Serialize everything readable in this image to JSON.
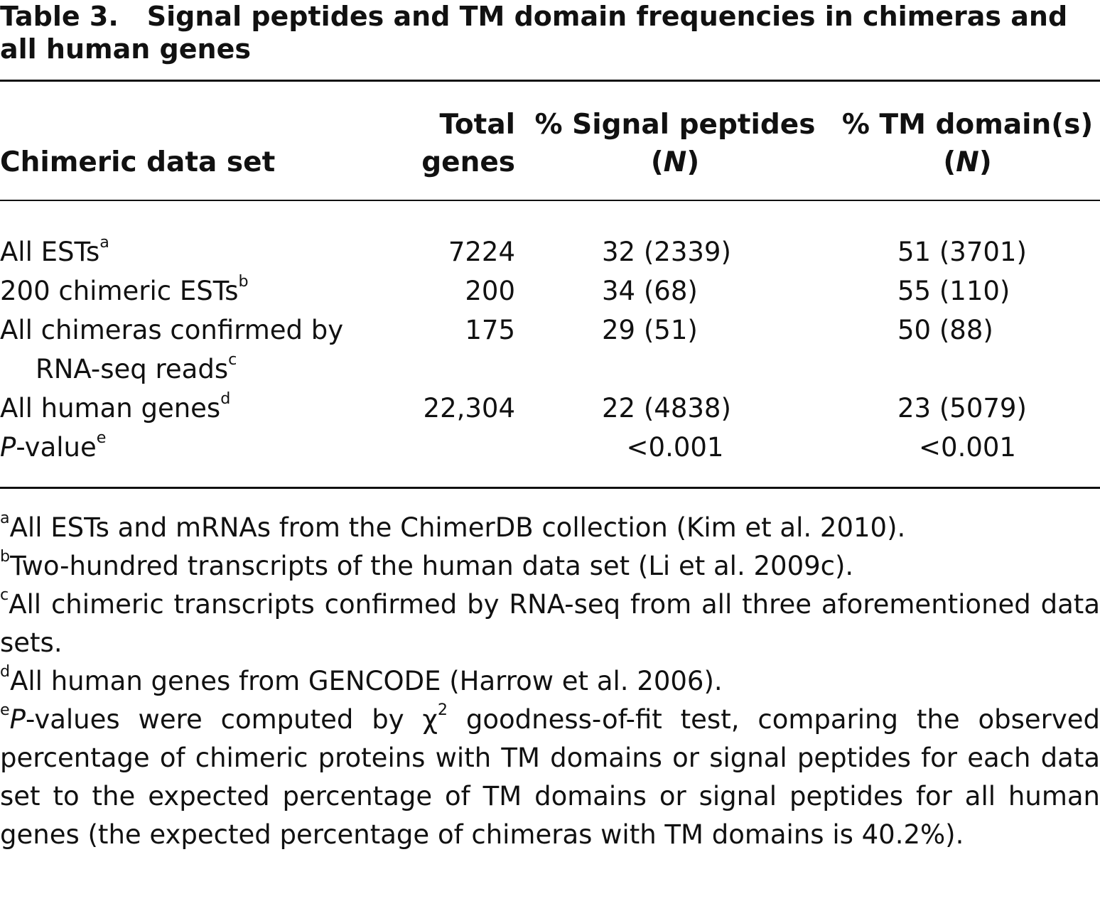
{
  "title": {
    "label": "Table 3.",
    "text": "Signal peptides and TM domain frequencies in chimeras and all human genes"
  },
  "table": {
    "header": [
      [
        {
          "t": "Chimeric data set"
        }
      ],
      [
        {
          "t": "Total genes"
        }
      ],
      [
        {
          "t": "% Signal peptides ("
        },
        {
          "t": "N",
          "i": true
        },
        {
          "t": ")"
        }
      ],
      [
        {
          "t": "% TM domain(s) ("
        },
        {
          "t": "N",
          "i": true
        },
        {
          "t": ")"
        }
      ]
    ],
    "rows": [
      [
        [
          {
            "t": "All ESTs"
          },
          {
            "t": "a",
            "sup": true
          }
        ],
        "7224",
        "32 (2339)",
        "51 (3701)"
      ],
      [
        [
          {
            "t": "200 chimeric ESTs"
          },
          {
            "t": "b",
            "sup": true
          }
        ],
        "200",
        "34 (68)",
        "55 (110)"
      ],
      [
        [
          {
            "t": "All chimeras confirmed by RNA-seq reads"
          },
          {
            "t": "c",
            "sup": true
          }
        ],
        "175",
        "29 (51)",
        "50 (88)"
      ],
      [
        [
          {
            "t": "All human genes"
          },
          {
            "t": "d",
            "sup": true
          }
        ],
        "22,304",
        "22 (4838)",
        "23 (5079)"
      ],
      [
        [
          {
            "t": "P",
            "i": true
          },
          {
            "t": "-value"
          },
          {
            "t": "e",
            "sup": true
          }
        ],
        null,
        "<0.001",
        "<0.001"
      ]
    ]
  },
  "footnotes": [
    [
      {
        "t": "a",
        "sup": true
      },
      {
        "t": "All ESTs and mRNAs from the ChimerDB collection (Kim et al. 2010)."
      }
    ],
    [
      {
        "t": "b",
        "sup": true
      },
      {
        "t": "Two-hundred transcripts of the human data set (Li et al. 2009c)."
      }
    ],
    [
      {
        "t": "c",
        "sup": true
      },
      {
        "t": "All chimeric transcripts confirmed by RNA-seq from all three aforementioned data sets."
      }
    ],
    [
      {
        "t": "d",
        "sup": true
      },
      {
        "t": "All human genes from GENCODE (Harrow et al. 2006)."
      }
    ],
    [
      {
        "t": "e",
        "sup": true
      },
      {
        "t": "P",
        "i": true
      },
      {
        "t": "-values were computed by "
      },
      {
        "t": "χ"
      },
      {
        "t": "2",
        "sup": true
      },
      {
        "t": " goodness-of-fit test, comparing the observed percentage of chimeric proteins with TM domains or signal peptides for each data set to the expected percentage of TM domains or signal peptides for all human genes (the expected percentage of chimeras with TM domains is 40.2%)."
      }
    ]
  ]
}
